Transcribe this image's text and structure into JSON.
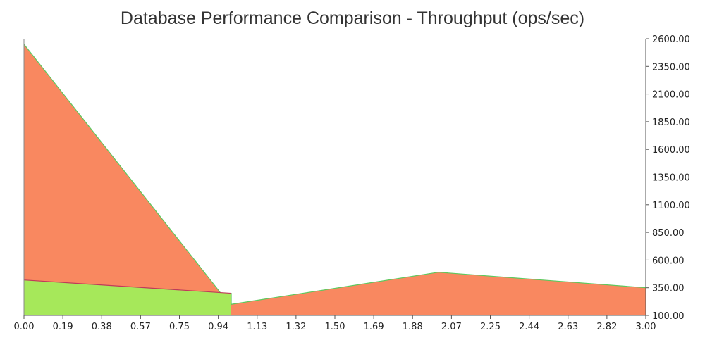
{
  "chart_data": {
    "type": "area",
    "title": "Database Performance Comparison - Throughput (ops/sec)",
    "xlabel": "",
    "ylabel": "",
    "xlim": [
      0,
      3
    ],
    "ylim": [
      100,
      2600
    ],
    "y_axis_side": "right",
    "grid": false,
    "legend": "none",
    "x_ticks": [
      "0.00",
      "0.19",
      "0.38",
      "0.57",
      "0.75",
      "0.94",
      "1.13",
      "1.32",
      "1.50",
      "1.69",
      "1.88",
      "2.07",
      "2.25",
      "2.44",
      "2.63",
      "2.82",
      "3.00"
    ],
    "y_ticks": [
      "100.00",
      "350.00",
      "600.00",
      "850.00",
      "1100.00",
      "1350.00",
      "1600.00",
      "1850.00",
      "2100.00",
      "2350.00",
      "2600.00"
    ],
    "series": [
      {
        "color": "#f98860",
        "line_color": "#5ec85e",
        "points": [
          [
            0,
            2550
          ],
          [
            0.95,
            300
          ],
          [
            1.0,
            300
          ],
          [
            1.0,
            200
          ],
          [
            2.0,
            490
          ],
          [
            3.0,
            350
          ]
        ]
      },
      {
        "color": "#a6e85a",
        "line_color": "#c03a5a",
        "points": [
          [
            0,
            420
          ],
          [
            1.0,
            300
          ]
        ]
      }
    ]
  }
}
